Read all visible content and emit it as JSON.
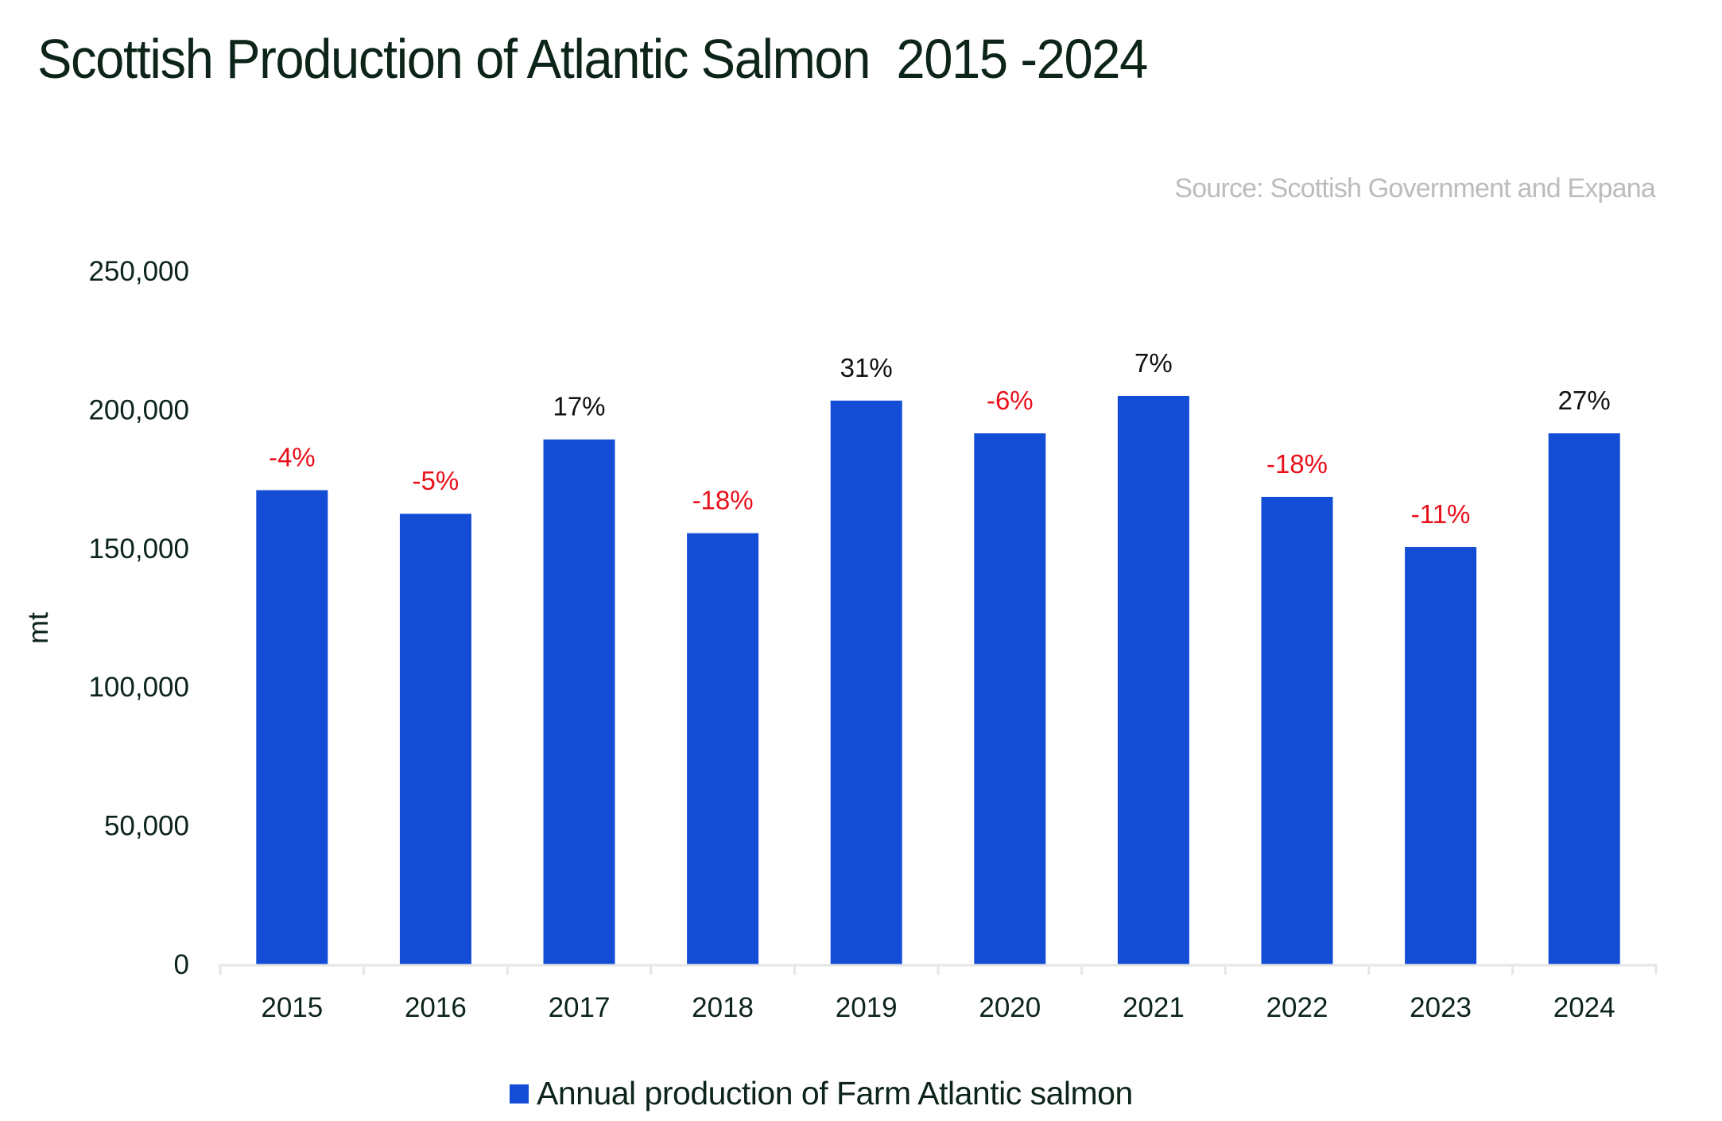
{
  "header": {
    "title": "Scottish Production of Atlantic Salmon  2015 -2024",
    "source": "Source: Scottish Government and Expana"
  },
  "colors": {
    "bar": "#134dd6",
    "positive_label": "#111111",
    "negative_label": "#e8101a",
    "axis_line": "#e6e6e6",
    "text": "#0d2418"
  },
  "chart_data": {
    "type": "bar",
    "title": "Scottish Production of Atlantic Salmon  2015 -2024",
    "xlabel": "",
    "ylabel": "mt",
    "ylim": [
      0,
      250000
    ],
    "yticks": [
      0,
      50000,
      100000,
      150000,
      200000,
      250000
    ],
    "ytick_labels": [
      "0",
      "50,000",
      "100,000",
      "150,000",
      "200,000",
      "250,000"
    ],
    "grid": false,
    "legend_position": "bottom",
    "categories": [
      "2015",
      "2016",
      "2017",
      "2018",
      "2019",
      "2020",
      "2021",
      "2022",
      "2023",
      "2024"
    ],
    "series": [
      {
        "name": "Annual production of Farm Atlantic salmon",
        "values": [
          171000,
          162500,
          189300,
          155500,
          203300,
          191500,
          205000,
          168600,
          150500,
          191500
        ],
        "data_labels": [
          "-4%",
          "-5%",
          "17%",
          "-18%",
          "31%",
          "-6%",
          "7%",
          "-18%",
          "-11%",
          "27%"
        ]
      }
    ]
  },
  "legend": {
    "items": [
      {
        "label": "Annual production of Farm Atlantic salmon"
      }
    ]
  }
}
